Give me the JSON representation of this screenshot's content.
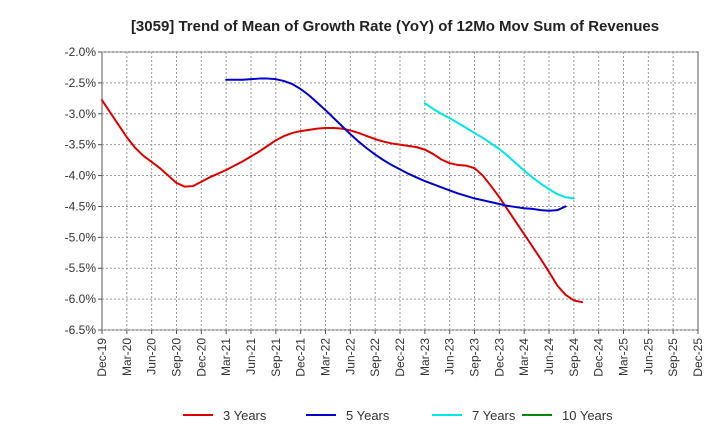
{
  "chart_data": {
    "type": "line",
    "title": "[3059]  Trend of Mean of Growth Rate (YoY) of 12Mo Mov Sum of Revenues",
    "xlabel": "",
    "ylabel": "",
    "ylim": [
      -6.5,
      -2.0
    ],
    "yticks": [
      "-2.0%",
      "-2.5%",
      "-3.0%",
      "-3.5%",
      "-4.0%",
      "-4.5%",
      "-5.0%",
      "-5.5%",
      "-6.0%",
      "-6.5%"
    ],
    "ytick_values": [
      -2.0,
      -2.5,
      -3.0,
      -3.5,
      -4.0,
      -4.5,
      -5.0,
      -5.5,
      -6.0,
      -6.5
    ],
    "x_categories": [
      "Dec-19",
      "Mar-20",
      "Jun-20",
      "Sep-20",
      "Dec-20",
      "Mar-21",
      "Jun-21",
      "Sep-21",
      "Dec-21",
      "Mar-22",
      "Jun-22",
      "Sep-22",
      "Dec-22",
      "Mar-23",
      "Jun-23",
      "Sep-23",
      "Dec-23",
      "Mar-24",
      "Jun-24",
      "Sep-24",
      "Dec-24",
      "Mar-25",
      "Jun-25",
      "Sep-25",
      "Dec-25"
    ],
    "xtick_labels": [
      "Dec-19",
      "Mar-20",
      "Jun-20",
      "Sep-20",
      "Dec-20",
      "Mar-21",
      "Jun-21",
      "Sep-21",
      "Dec-21",
      "Mar-22",
      "Jun-22",
      "Sep-22",
      "Dec-22",
      "Mar-23",
      "Jun-23",
      "Sep-23",
      "Dec-23",
      "Mar-24",
      "Jun-24",
      "Sep-24",
      "Dec-24",
      "Mar-25",
      "Jun-25",
      "Sep-25",
      "Dec-25"
    ],
    "grid": true,
    "legend_position": "bottom",
    "series": [
      {
        "name": "3 Years",
        "color": "#dd0000",
        "start_index": 0,
        "values": [
          -2.78,
          -2.98,
          -3.18,
          -3.38,
          -3.55,
          -3.68,
          -3.78,
          -3.88,
          -4.0,
          -4.12,
          -4.18,
          -4.17,
          -4.1,
          -4.03,
          -3.97,
          -3.91,
          -3.84,
          -3.77,
          -3.69,
          -3.61,
          -3.52,
          -3.43,
          -3.36,
          -3.31,
          -3.28,
          -3.26,
          -3.24,
          -3.23,
          -3.23,
          -3.24,
          -3.27,
          -3.31,
          -3.36,
          -3.41,
          -3.45,
          -3.48,
          -3.5,
          -3.52,
          -3.54,
          -3.58,
          -3.65,
          -3.74,
          -3.8,
          -3.83,
          -3.84,
          -3.88,
          -4.0,
          -4.17,
          -4.35,
          -4.55,
          -4.75,
          -4.95,
          -5.15,
          -5.35,
          -5.56,
          -5.78,
          -5.93,
          -6.02,
          -6.05
        ]
      },
      {
        "name": "5 Years",
        "color": "#0000cc",
        "start_index": 15,
        "values": [
          -2.45,
          -2.45,
          -2.45,
          -2.44,
          -2.43,
          -2.43,
          -2.44,
          -2.47,
          -2.52,
          -2.6,
          -2.7,
          -2.82,
          -2.94,
          -3.07,
          -3.2,
          -3.33,
          -3.45,
          -3.56,
          -3.66,
          -3.75,
          -3.83,
          -3.9,
          -3.97,
          -4.03,
          -4.09,
          -4.14,
          -4.19,
          -4.24,
          -4.29,
          -4.33,
          -4.37,
          -4.4,
          -4.43,
          -4.46,
          -4.49,
          -4.51,
          -4.53,
          -4.54,
          -4.56,
          -4.57,
          -4.56,
          -4.5
        ]
      },
      {
        "name": "7 Years",
        "color": "#00e5e5",
        "start_index": 39,
        "values": [
          -2.83,
          -2.92,
          -3.0,
          -3.07,
          -3.15,
          -3.23,
          -3.31,
          -3.39,
          -3.48,
          -3.57,
          -3.68,
          -3.8,
          -3.92,
          -4.03,
          -4.13,
          -4.22,
          -4.3,
          -4.35,
          -4.37
        ]
      },
      {
        "name": "10 Years",
        "color": "#008800",
        "start_index": 0,
        "values": []
      }
    ]
  }
}
